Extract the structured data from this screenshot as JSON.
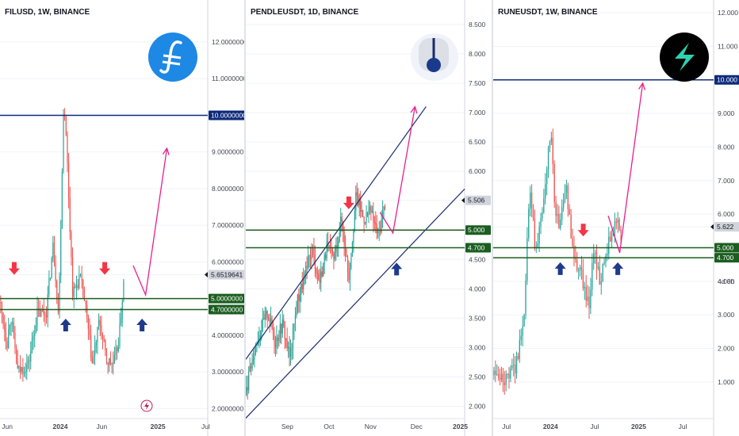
{
  "colors": {
    "up": "#26a69a",
    "down": "#ef5350",
    "hline_blue": "#0d2a7a",
    "hline_green": "#1b5e20",
    "arrow_red": "#f23645",
    "arrow_blue": "#1e3a8a",
    "forecast": "#e91e8c",
    "channel": "#1a2a6c",
    "axis_text": "#131722",
    "grid": "#f0f3fa"
  },
  "chart_data": [
    {
      "type": "candlestick",
      "title": "FILUSD, 1W, BINANCE",
      "icon": "filecoin-logo-icon",
      "ylim": [
        1.9,
        12.8
      ],
      "y_ticks": [
        "12.0000000",
        "11.0000000",
        "10.0000000",
        "9.0000000",
        "8.0000000",
        "7.0000000",
        "6.0000000",
        "5.6519641",
        "5.0000000",
        "4.7000000",
        "4.0000000",
        "3.0000000",
        "2.0000000"
      ],
      "x_ticks": [
        "Jun",
        "2024",
        "Jun",
        "2025",
        "Jul"
      ],
      "x_tick_pos": [
        0.035,
        0.29,
        0.49,
        0.76,
        0.99
      ],
      "x_range": [
        0,
        1.17
      ],
      "price_labels": [
        {
          "text": "10.0000000",
          "value": 10.0,
          "style": "blue"
        },
        {
          "text": "5.6519641",
          "value": 5.6519641,
          "style": "gray"
        },
        {
          "text": "5.0000000",
          "value": 5.0,
          "style": "green"
        },
        {
          "text": "4.7000000",
          "value": 4.7,
          "style": "green"
        }
      ],
      "hlines": [
        {
          "value": 10.0,
          "color": "blue"
        },
        {
          "value": 5.0,
          "color": "green"
        },
        {
          "value": 4.7,
          "color": "green"
        }
      ],
      "anchors": [
        [
          0,
          4.9
        ],
        [
          0.04,
          3.8
        ],
        [
          0.06,
          4.6
        ],
        [
          0.1,
          3.0
        ],
        [
          0.16,
          3.2
        ],
        [
          0.21,
          4.6
        ],
        [
          0.26,
          4.6
        ],
        [
          0.3,
          6.5
        ],
        [
          0.33,
          4.5
        ],
        [
          0.36,
          10.6
        ],
        [
          0.38,
          8.6
        ],
        [
          0.41,
          5.1
        ],
        [
          0.45,
          5.6
        ],
        [
          0.48,
          4.8
        ],
        [
          0.52,
          3.2
        ],
        [
          0.56,
          4.4
        ],
        [
          0.6,
          3.3
        ],
        [
          0.64,
          3.2
        ],
        [
          0.67,
          3.9
        ],
        [
          0.7,
          5.65
        ]
      ],
      "candles": 95,
      "arrows": [
        {
          "dir": "down",
          "x": 0.08,
          "value": 5.8,
          "color": "red"
        },
        {
          "dir": "up",
          "x": 0.37,
          "value": 4.3,
          "color": "blue"
        },
        {
          "dir": "down",
          "x": 0.59,
          "value": 5.8,
          "color": "red"
        },
        {
          "dir": "up",
          "x": 0.8,
          "value": 4.3,
          "color": "blue"
        }
      ],
      "forecast": [
        [
          0.75,
          5.9
        ],
        [
          0.82,
          5.1
        ],
        [
          0.94,
          9.1
        ]
      ]
    },
    {
      "type": "candlestick",
      "title": "PENDLEUSDT, 1D, BINANCE",
      "icon": "pendle-logo-icon",
      "ylim": [
        1.9,
        8.7
      ],
      "y_ticks": [
        "8.500",
        "8.000",
        "7.500",
        "7.000",
        "6.500",
        "6.000",
        "5.506",
        "5.000",
        "4.700",
        "4.500",
        "4.000",
        "3.500",
        "3.000",
        "2.500",
        "2.000"
      ],
      "x_ticks": [
        "Sep",
        "Oct",
        "Nov",
        "Dec",
        "2025"
      ],
      "x_tick_pos": [
        0.19,
        0.38,
        0.57,
        0.78,
        0.98
      ],
      "x_range": [
        0,
        1.19
      ],
      "price_labels": [
        {
          "text": "5.506",
          "value": 5.506,
          "style": "gray"
        },
        {
          "text": "5.000",
          "value": 5.0,
          "style": "green"
        },
        {
          "text": "4.700",
          "value": 4.7,
          "style": "green"
        }
      ],
      "hlines": [
        {
          "value": 5.0,
          "color": "green"
        },
        {
          "value": 4.7,
          "color": "green"
        }
      ],
      "anchors": [
        [
          0,
          2.2
        ],
        [
          0.04,
          2.9
        ],
        [
          0.08,
          3.3
        ],
        [
          0.12,
          3.6
        ],
        [
          0.16,
          3.1
        ],
        [
          0.2,
          3.4
        ],
        [
          0.24,
          2.8
        ],
        [
          0.28,
          3.8
        ],
        [
          0.32,
          4.2
        ],
        [
          0.36,
          4.7
        ],
        [
          0.4,
          4.1
        ],
        [
          0.44,
          4.7
        ],
        [
          0.48,
          4.5
        ],
        [
          0.52,
          5.2
        ],
        [
          0.56,
          4.2
        ],
        [
          0.6,
          5.6
        ],
        [
          0.64,
          5.2
        ],
        [
          0.68,
          5.3
        ],
        [
          0.72,
          4.9
        ],
        [
          0.76,
          5.5
        ]
      ],
      "candles": 120,
      "channel": [
        [
          [
            0,
            1.8
          ],
          [
            1.19,
            5.7
          ]
        ],
        [
          [
            0,
            2.8
          ],
          [
            0.98,
            7.1
          ]
        ]
      ],
      "arrows": [
        {
          "dir": "down",
          "x": 0.56,
          "value": 5.45,
          "color": "red"
        },
        {
          "dir": "up",
          "x": 0.82,
          "value": 4.35,
          "color": "blue"
        }
      ],
      "forecast": [
        [
          0.73,
          5.3
        ],
        [
          0.8,
          4.95
        ],
        [
          0.92,
          7.1
        ]
      ]
    },
    {
      "type": "candlestick",
      "title": "RUNEUSDT, 1W, BINANCE",
      "icon": "thorchain-logo-icon",
      "ylim": [
        0.1,
        12.0
      ],
      "y_ticks": [
        "12.000",
        "11.000",
        "10.000",
        "9.000",
        "8.000",
        "7.000",
        "6.000",
        "5.622",
        "4d 8h",
        "5.000",
        "4.700",
        "4.000",
        "3.000",
        "2.000",
        "1.000"
      ],
      "x_ticks": [
        "Jul",
        "2024",
        "Jul",
        "2025",
        "Jul"
      ],
      "x_tick_pos": [
        0.06,
        0.26,
        0.46,
        0.66,
        0.86
      ],
      "x_range": [
        0,
        1.15
      ],
      "price_labels": [
        {
          "text": "10.000",
          "value": 10.0,
          "style": "blue"
        },
        {
          "text": "5.622",
          "value": 5.622,
          "style": "gray"
        },
        {
          "text": "5.000",
          "value": 5.0,
          "style": "green"
        },
        {
          "text": "4.700",
          "value": 4.7,
          "style": "green"
        }
      ],
      "hlines": [
        {
          "value": 10.0,
          "color": "blue"
        },
        {
          "value": 5.0,
          "color": "green"
        },
        {
          "value": 4.7,
          "color": "green"
        }
      ],
      "anchors": [
        [
          0,
          1.2
        ],
        [
          0.06,
          1.0
        ],
        [
          0.12,
          1.5
        ],
        [
          0.16,
          3.0
        ],
        [
          0.19,
          6.8
        ],
        [
          0.22,
          5.0
        ],
        [
          0.26,
          6.0
        ],
        [
          0.3,
          8.6
        ],
        [
          0.32,
          6.4
        ],
        [
          0.34,
          5.6
        ],
        [
          0.38,
          6.8
        ],
        [
          0.42,
          4.6
        ],
        [
          0.46,
          4.2
        ],
        [
          0.5,
          3.2
        ],
        [
          0.52,
          5.0
        ],
        [
          0.56,
          4.0
        ],
        [
          0.6,
          5.1
        ],
        [
          0.64,
          5.8
        ],
        [
          0.67,
          5.62
        ]
      ],
      "candles": 85,
      "arrows": [
        {
          "dir": "down",
          "x": 0.47,
          "value": 5.5,
          "color": "red"
        },
        {
          "dir": "up",
          "x": 0.35,
          "value": 4.4,
          "color": "blue"
        },
        {
          "dir": "up",
          "x": 0.65,
          "value": 4.4,
          "color": "blue"
        }
      ],
      "forecast": [
        [
          0.6,
          5.95
        ],
        [
          0.66,
          4.85
        ],
        [
          0.78,
          9.9
        ]
      ]
    }
  ],
  "watermark_icon": "tradingview-flash-icon"
}
